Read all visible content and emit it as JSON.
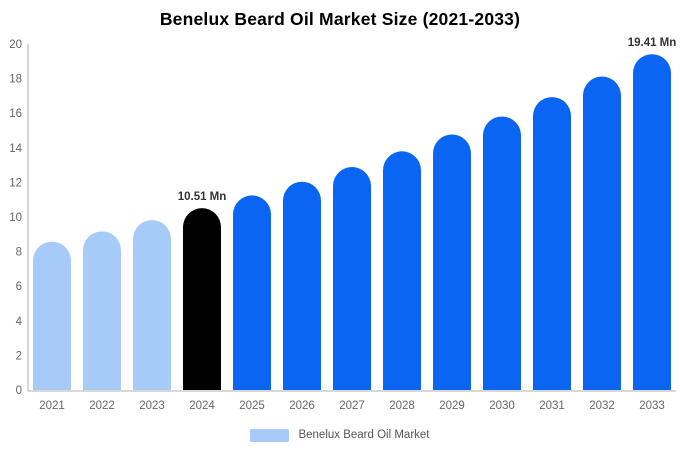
{
  "chart_data": {
    "type": "bar",
    "title": "Benelux Beard Oil Market Size (2021-2033)",
    "categories": [
      "2021",
      "2022",
      "2023",
      "2024",
      "2025",
      "2026",
      "2027",
      "2028",
      "2029",
      "2030",
      "2031",
      "2032",
      "2033"
    ],
    "values": [
      8.57,
      9.17,
      9.82,
      10.51,
      11.25,
      12.04,
      12.89,
      13.8,
      14.77,
      15.81,
      16.93,
      18.12,
      19.41
    ],
    "unit": "Mn",
    "xlabel": "",
    "ylabel": "",
    "ylim": [
      0,
      20
    ],
    "y_ticks": [
      0,
      2,
      4,
      6,
      8,
      10,
      12,
      14,
      16,
      18,
      20
    ],
    "grid": false,
    "legend_position": "bottom",
    "bar_colors": [
      "#a6cbf9",
      "#a6cbf9",
      "#a6cbf9",
      "#000000",
      "#0a66f2",
      "#0a66f2",
      "#0a66f2",
      "#0a66f2",
      "#0a66f2",
      "#0a66f2",
      "#0a66f2",
      "#0a66f2",
      "#0a66f2"
    ],
    "annotations": [
      {
        "category": "2024",
        "text": "10.51 Mn"
      },
      {
        "category": "2033",
        "text": "19.41 Mn"
      }
    ],
    "legend": {
      "items": [
        {
          "label": "Benelux Beard Oil Market",
          "color": "#a6cbf9"
        }
      ]
    },
    "colors": {
      "axis_line": "#cccccc",
      "tick_label": "#666666",
      "annotation": "#333333",
      "title": "#000000",
      "legend_text": "#555555"
    }
  }
}
